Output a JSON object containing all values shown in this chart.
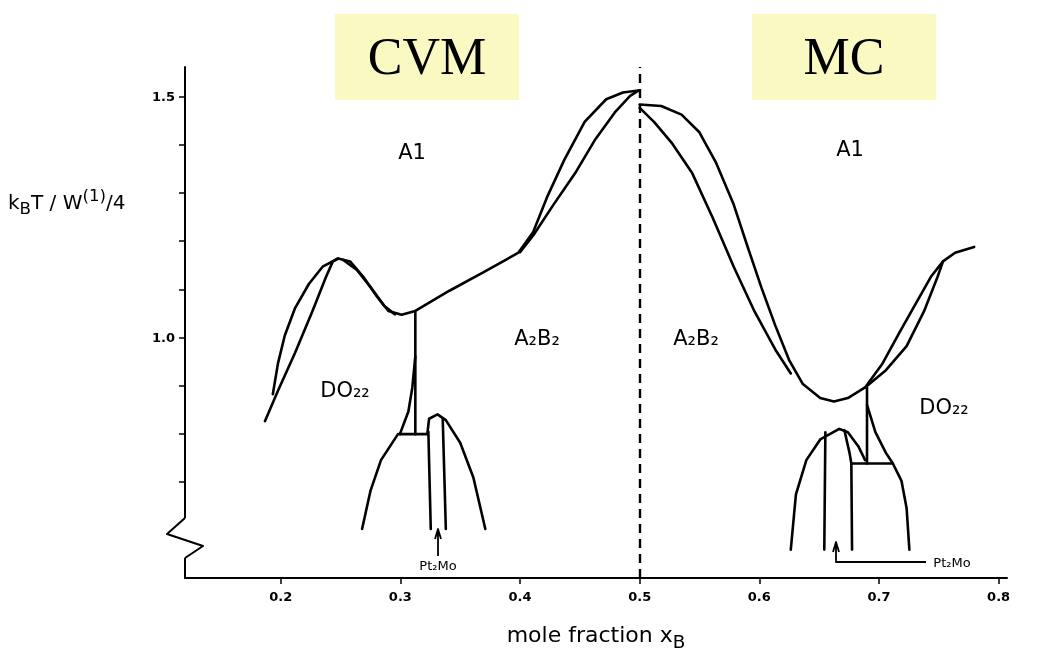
{
  "chart_data": {
    "type": "line",
    "xlabel": "mole fraction x$_{B}$",
    "ylabel": "k$_{B}$T / W$^{(1)}$/4",
    "xlim": [
      0.12,
      0.807
    ],
    "ylim": [
      0.5,
      1.562
    ],
    "xticks": [
      0.2,
      0.3,
      0.4,
      0.5,
      0.6,
      0.7,
      0.8
    ],
    "yticks": [
      {
        "value": 0.7,
        "label": null
      },
      {
        "value": 0.8,
        "label": null
      },
      {
        "value": 0.9,
        "label": null
      },
      {
        "value": 1.0,
        "label": "1.0"
      },
      {
        "value": 1.1,
        "label": null
      },
      {
        "value": 1.2,
        "label": null
      },
      {
        "value": 1.3,
        "label": null
      },
      {
        "value": 1.4,
        "label": null
      },
      1.5
    ],
    "marker": "none",
    "line_style": "solid",
    "ref_lines": [
      {
        "axis": "x",
        "value": 0.5,
        "color": "#000000",
        "line_style": "dashed"
      }
    ],
    "annotations": [
      "A1",
      "DO₂₂",
      "A₂B₂",
      "A₂B₂",
      "A1",
      "DO₂₂",
      "Pt₂Mo",
      "Pt₂Mo",
      "CVM",
      "MC"
    ],
    "series": [
      {
        "color": "#000000",
        "x": [
          0.1934,
          0.1977,
          0.2034,
          0.212,
          0.2235,
          0.235,
          0.248,
          0.258,
          0.269,
          0.281,
          0.29,
          0.301,
          0.3125,
          0.341,
          0.37,
          0.3986,
          0.411,
          0.4225,
          0.437,
          0.454,
          0.472,
          0.486,
          0.499
        ],
        "values": [
          0.882,
          0.946,
          1.004,
          1.061,
          1.111,
          1.147,
          1.164,
          1.158,
          1.126,
          1.083,
          1.055,
          1.047,
          1.055,
          1.097,
          1.136,
          1.176,
          1.219,
          1.291,
          1.369,
          1.448,
          1.495,
          1.509,
          1.513
        ]
      },
      {
        "color": "#000000",
        "x": [
          0.1868,
          0.1977,
          0.212,
          0.2264,
          0.2379,
          0.2436,
          0.248
        ],
        "values": [
          0.826,
          0.889,
          0.968,
          1.054,
          1.126,
          1.158,
          1.164
        ]
      },
      {
        "color": "#000000",
        "x": [
          0.2522,
          0.2637,
          0.2752,
          0.2867,
          0.2953
        ],
        "values": [
          1.161,
          1.14,
          1.104,
          1.065,
          1.048
        ]
      },
      {
        "color": "#000000",
        "x": [
          0.4,
          0.411,
          0.428,
          0.446,
          0.463,
          0.48,
          0.492,
          0.499
        ],
        "values": [
          1.177,
          1.212,
          1.276,
          1.341,
          1.412,
          1.47,
          1.502,
          1.513
        ]
      },
      {
        "color": "#000000",
        "x": [
          0.3125,
          0.3125
        ],
        "values": [
          1.055,
          0.799
        ]
      },
      {
        "color": "#000000",
        "x": [
          0.3125,
          0.31,
          0.3067,
          0.2996
        ],
        "values": [
          0.961,
          0.896,
          0.846,
          0.799
        ]
      },
      {
        "color": "#000000",
        "x": [
          0.268,
          0.275,
          0.2838,
          0.298,
          0.3225,
          0.324,
          0.331,
          0.338,
          0.35,
          0.361,
          0.371
        ],
        "values": [
          0.602,
          0.681,
          0.745,
          0.799,
          0.799,
          0.831,
          0.84,
          0.828,
          0.781,
          0.709,
          0.602
        ]
      },
      {
        "color": "#000000",
        "x": [
          0.3234,
          0.3254
        ],
        "values": [
          0.804,
          0.602
        ]
      },
      {
        "color": "#000000",
        "x": [
          0.3354,
          0.338
        ],
        "values": [
          0.831,
          0.602
        ]
      },
      {
        "color": "#000000",
        "x": [
          0.5,
          0.518,
          0.535,
          0.5497,
          0.564,
          0.5786,
          0.59,
          0.6017,
          0.6133,
          0.6249,
          0.6364,
          0.6509,
          0.6624,
          0.674,
          0.6884,
          0.703,
          0.7173,
          0.7318,
          0.7434,
          0.7535,
          0.7636,
          0.7795
        ],
        "values": [
          1.484,
          1.481,
          1.463,
          1.427,
          1.362,
          1.276,
          1.19,
          1.104,
          1.025,
          0.953,
          0.903,
          0.874,
          0.867,
          0.874,
          0.896,
          0.946,
          1.011,
          1.075,
          1.126,
          1.158,
          1.176,
          1.188
        ]
      },
      {
        "color": "#000000",
        "x": [
          0.5,
          0.512,
          0.5266,
          0.544,
          0.5613,
          0.5786,
          0.596,
          0.6133,
          0.6263
        ],
        "values": [
          1.477,
          1.448,
          1.405,
          1.341,
          1.247,
          1.147,
          1.054,
          0.975,
          0.925
        ]
      },
      {
        "color": "#000000",
        "x": [
          0.6884,
          0.7058,
          0.7231,
          0.7376,
          0.749,
          0.7535
        ],
        "values": [
          0.896,
          0.932,
          0.982,
          1.054,
          1.126,
          1.158
        ]
      },
      {
        "color": "#000000",
        "x": [
          0.69,
          0.69
        ],
        "values": [
          0.896,
          0.738
        ]
      },
      {
        "color": "#000000",
        "x": [
          0.69,
          0.697,
          0.7058,
          0.7116
        ],
        "values": [
          0.86,
          0.803,
          0.76,
          0.738
        ]
      },
      {
        "color": "#000000",
        "x": [
          0.6775,
          0.6769,
          0.7116,
          0.7188,
          0.7231,
          0.7254
        ],
        "values": [
          0.559,
          0.738,
          0.738,
          0.702,
          0.645,
          0.559
        ]
      },
      {
        "color": "#000000",
        "x": [
          0.6263,
          0.6306,
          0.6393,
          0.6509,
          0.6668,
          0.674,
          0.6827,
          0.6884
        ],
        "values": [
          0.559,
          0.674,
          0.745,
          0.788,
          0.81,
          0.803,
          0.774,
          0.745
        ]
      },
      {
        "color": "#000000",
        "x": [
          0.6552,
          0.6543
        ],
        "values": [
          0.803,
          0.559
        ]
      },
      {
        "color": "#000000",
        "x": [
          0.6711,
          0.6754,
          0.6769
        ],
        "values": [
          0.807,
          0.76,
          0.738
        ]
      }
    ]
  }
}
